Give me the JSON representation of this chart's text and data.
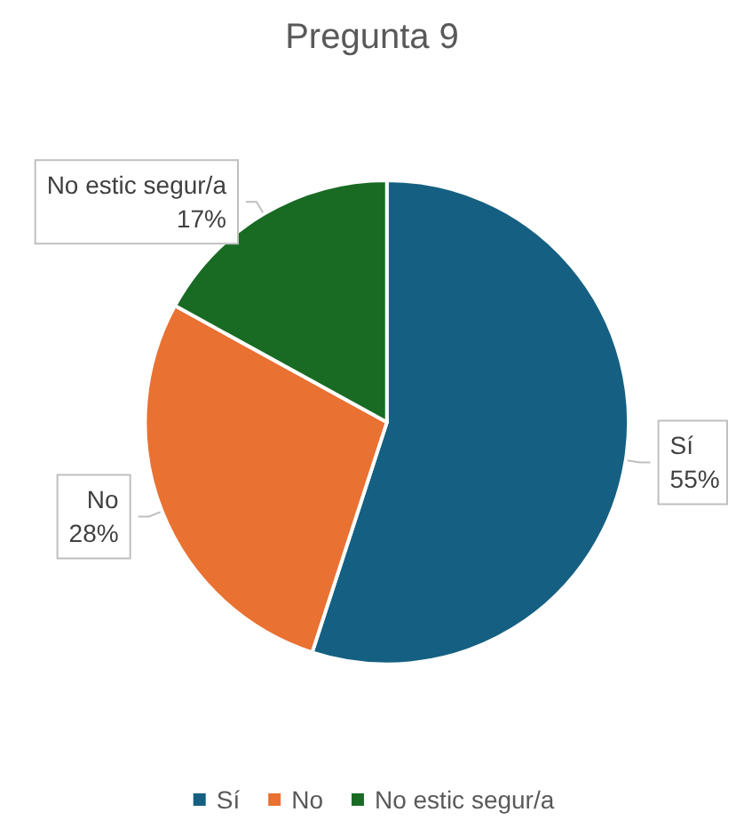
{
  "chart_data": {
    "type": "pie",
    "title": "Pregunta 9",
    "categories": [
      "Sí",
      "No",
      "No estic segur/a"
    ],
    "values": [
      55,
      28,
      17
    ],
    "value_labels": [
      "55%",
      "28%",
      "17%"
    ],
    "colors": [
      "#156082",
      "#e97132",
      "#196b24"
    ],
    "legend": "bottom"
  }
}
